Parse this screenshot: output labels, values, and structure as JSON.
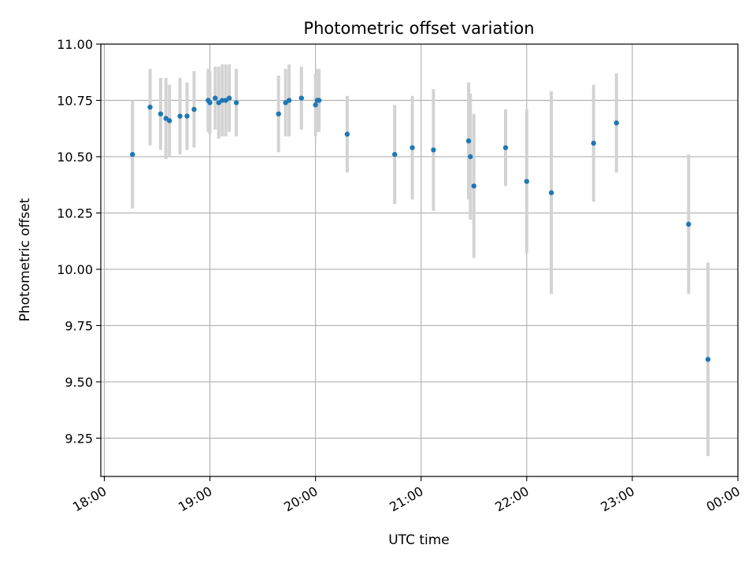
{
  "chart_data": {
    "type": "scatter",
    "title": "Photometric offset variation",
    "xlabel": "UTC time",
    "ylabel": "Photometric offset",
    "x_unit": "UTC time (HH:MM)",
    "xlim": [
      "17:58",
      "00:00"
    ],
    "ylim": [
      9.08,
      11.0
    ],
    "grid": true,
    "x_ticks": [
      "18:00",
      "19:00",
      "20:00",
      "21:00",
      "22:00",
      "23:00",
      "00:00"
    ],
    "y_ticks": [
      "9.25",
      "9.50",
      "9.75",
      "10.00",
      "10.25",
      "10.50",
      "10.75",
      "11.00"
    ],
    "colors": {
      "point": "#1f77b4",
      "errorbar": "#d3d3d3",
      "grid": "#b0b0b0"
    },
    "points": [
      {
        "x": "18:16",
        "y": 10.51,
        "yerr": 0.24
      },
      {
        "x": "18:26",
        "y": 10.72,
        "yerr": 0.17
      },
      {
        "x": "18:32",
        "y": 10.69,
        "yerr": 0.16
      },
      {
        "x": "18:35",
        "y": 10.67,
        "yerr": 0.18
      },
      {
        "x": "18:37",
        "y": 10.66,
        "yerr": 0.16
      },
      {
        "x": "18:43",
        "y": 10.68,
        "yerr": 0.17
      },
      {
        "x": "18:47",
        "y": 10.68,
        "yerr": 0.15
      },
      {
        "x": "18:51",
        "y": 10.71,
        "yerr": 0.17
      },
      {
        "x": "18:59",
        "y": 10.75,
        "yerr": 0.14
      },
      {
        "x": "19:00",
        "y": 10.74,
        "yerr": 0.14
      },
      {
        "x": "19:03",
        "y": 10.76,
        "yerr": 0.14
      },
      {
        "x": "19:05",
        "y": 10.74,
        "yerr": 0.16
      },
      {
        "x": "19:07",
        "y": 10.75,
        "yerr": 0.16
      },
      {
        "x": "19:09",
        "y": 10.75,
        "yerr": 0.16
      },
      {
        "x": "19:11",
        "y": 10.76,
        "yerr": 0.15
      },
      {
        "x": "19:15",
        "y": 10.74,
        "yerr": 0.15
      },
      {
        "x": "19:39",
        "y": 10.69,
        "yerr": 0.17
      },
      {
        "x": "19:43",
        "y": 10.74,
        "yerr": 0.15
      },
      {
        "x": "19:45",
        "y": 10.75,
        "yerr": 0.16
      },
      {
        "x": "19:52",
        "y": 10.76,
        "yerr": 0.14
      },
      {
        "x": "20:00",
        "y": 10.73,
        "yerr": 0.14
      },
      {
        "x": "20:01",
        "y": 10.75,
        "yerr": 0.14
      },
      {
        "x": "20:02",
        "y": 10.75,
        "yerr": 0.14
      },
      {
        "x": "20:18",
        "y": 10.6,
        "yerr": 0.17
      },
      {
        "x": "20:45",
        "y": 10.51,
        "yerr": 0.22
      },
      {
        "x": "20:55",
        "y": 10.54,
        "yerr": 0.23
      },
      {
        "x": "21:07",
        "y": 10.53,
        "yerr": 0.27
      },
      {
        "x": "21:27",
        "y": 10.57,
        "yerr": 0.26
      },
      {
        "x": "21:28",
        "y": 10.5,
        "yerr": 0.28
      },
      {
        "x": "21:30",
        "y": 10.37,
        "yerr": 0.32
      },
      {
        "x": "21:48",
        "y": 10.54,
        "yerr": 0.17
      },
      {
        "x": "22:00",
        "y": 10.39,
        "yerr": 0.32
      },
      {
        "x": "22:14",
        "y": 10.34,
        "yerr": 0.45
      },
      {
        "x": "22:38",
        "y": 10.56,
        "yerr": 0.26
      },
      {
        "x": "22:51",
        "y": 10.65,
        "yerr": 0.22
      },
      {
        "x": "23:32",
        "y": 10.2,
        "yerr": 0.31
      },
      {
        "x": "23:43",
        "y": 9.6,
        "yerr": 0.43
      }
    ]
  }
}
